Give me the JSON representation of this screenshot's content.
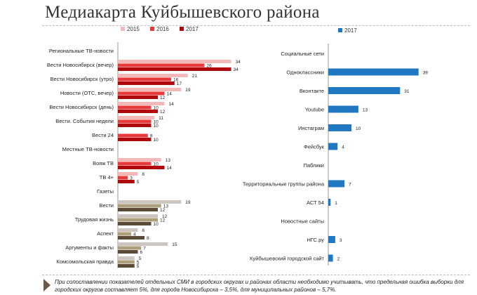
{
  "title": "Медиакарта Куйбышевского района",
  "note": "При сопоставлении показателей отдельных СМИ в городских округах и районах области необходимо учитывать, что предельная ошибка выборки для городских округов составляет 5%, для города Новосибирска – 3,5%, для муниципальных районов – 5,7%.",
  "chart_data": [
    {
      "type": "bar",
      "orientation": "horizontal",
      "legend": "top",
      "series_names": [
        "2015",
        "2016",
        "2017"
      ],
      "colors": {
        "tv": [
          "#f3b9b9",
          "#e8393a",
          "#b0080c"
        ],
        "press": [
          "#cdc6c0",
          "#ad9e7c",
          "#5b4a36"
        ]
      },
      "rows": [
        {
          "label": "Региональные ТВ-новости",
          "header": true
        },
        {
          "label": "Вести Новосибирск (вечер)",
          "group": "tv",
          "values": [
            34,
            26,
            34
          ]
        },
        {
          "label": "Вести Новосибирск (утро)",
          "group": "tv",
          "values": [
            21,
            16,
            17
          ]
        },
        {
          "label": "Новости (ОТС, вечер)",
          "group": "tv",
          "values": [
            19,
            14,
            12
          ]
        },
        {
          "label": "Вести Новосибирск (день)",
          "group": "tv",
          "values": [
            14,
            10,
            12
          ]
        },
        {
          "label": "Вести. События недели",
          "group": "tv",
          "values": [
            11,
            10,
            10
          ]
        },
        {
          "label": "Вести 24",
          "group": "tv",
          "values": [
            null,
            9,
            10
          ]
        },
        {
          "label": "Местные ТВ-новости",
          "header": true
        },
        {
          "label": "Вояж ТВ",
          "group": "tv",
          "values": [
            13,
            10,
            14
          ]
        },
        {
          "label": "ТВ 4+",
          "group": "tv",
          "values": [
            6,
            3,
            5
          ]
        },
        {
          "label": "Газеты",
          "header": true
        },
        {
          "label": "Вести",
          "group": "press",
          "values": [
            19,
            13,
            12
          ]
        },
        {
          "label": "Трудовая жизнь",
          "group": "press",
          "values": [
            12,
            12,
            10
          ]
        },
        {
          "label": "Аспект",
          "group": "press",
          "values": [
            6,
            4,
            8
          ]
        },
        {
          "label": "Аргументы и факты",
          "group": "press",
          "values": [
            15,
            7,
            6
          ]
        },
        {
          "label": "Комсомольская правда",
          "group": "press",
          "values": [
            5,
            5,
            5
          ]
        }
      ]
    },
    {
      "type": "bar",
      "orientation": "horizontal",
      "legend": "top",
      "series_names": [
        "2017"
      ],
      "color": "#1f78c1",
      "rows": [
        {
          "label": "Социальные сети",
          "header": true
        },
        {
          "label": "Одноклассники",
          "values": [
            39
          ]
        },
        {
          "label": "Вконтакте",
          "values": [
            31
          ]
        },
        {
          "label": "Youtube",
          "values": [
            13
          ]
        },
        {
          "label": "Инстаграм",
          "values": [
            10
          ]
        },
        {
          "label": "Фейсбук",
          "values": [
            4
          ]
        },
        {
          "label": "Паблики",
          "header": true
        },
        {
          "label": "Территориальные группы района",
          "values": [
            7
          ]
        },
        {
          "label": "АСТ 54",
          "values": [
            1
          ]
        },
        {
          "label": "Новостные сайты",
          "header": true
        },
        {
          "label": "НГС.ру",
          "values": [
            3
          ]
        },
        {
          "label": "Куйбышевский городской сайт",
          "values": [
            2
          ]
        }
      ]
    }
  ]
}
